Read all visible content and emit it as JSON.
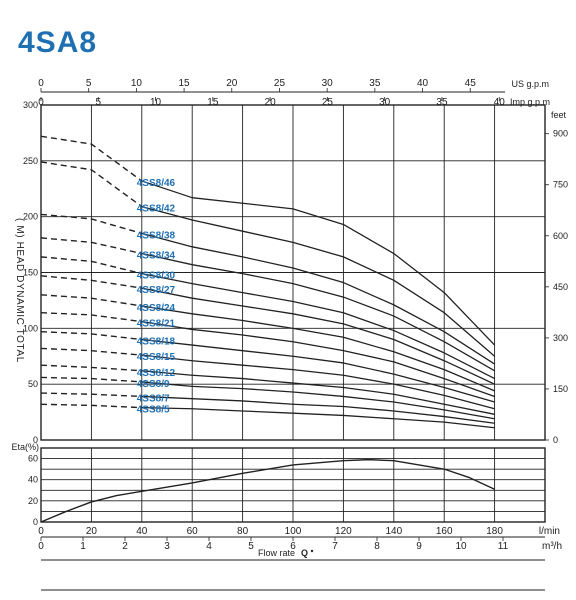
{
  "title": "4SA8",
  "head_chart": {
    "ylabel": "( M) HEAD DYNAMIC TOTAL",
    "left_ticks": [
      "0",
      "50",
      "100",
      "150",
      "200",
      "250",
      "300"
    ],
    "feet_label": "feet",
    "feet_ticks": [
      {
        "v": 0,
        "t": "0"
      },
      {
        "v": 150,
        "t": "150"
      },
      {
        "v": 300,
        "t": "300"
      },
      {
        "v": 450,
        "t": "450"
      },
      {
        "v": 600,
        "t": "600"
      },
      {
        "v": 750,
        "t": "750"
      },
      {
        "v": 900,
        "t": "900"
      }
    ],
    "usgpm_label": "US g.p.m",
    "usgpm_ticks": [
      "0",
      "5",
      "10",
      "15",
      "20",
      "25",
      "30",
      "35",
      "40",
      "45"
    ],
    "impgpm_label": "Imp g.p.m",
    "impgpm_ticks": [
      "0",
      "5",
      "10",
      "15",
      "20",
      "25",
      "30",
      "35",
      "40"
    ]
  },
  "eff_chart": {
    "ylabel": "Eta(%)",
    "ticks": [
      "0",
      "20",
      "40",
      "60"
    ]
  },
  "bottom_axis": {
    "lmin_ticks": [
      "0",
      "20",
      "40",
      "60",
      "80",
      "100",
      "120",
      "140",
      "160",
      "180"
    ],
    "lmin_label": "l/min",
    "m3h_ticks": [
      "0",
      "1",
      "2",
      "3",
      "4",
      "5",
      "6",
      "7",
      "8",
      "9",
      "10",
      "11"
    ],
    "m3h_label": "m³/h",
    "xlabel": "Flow rate",
    "xsym": "Q"
  },
  "chart_data": [
    {
      "type": "line",
      "x_unit": "l/min",
      "xlim": [
        0,
        200
      ],
      "ylim": [
        0,
        300
      ],
      "dashed_until_x": 40,
      "series": [
        {
          "name": "4SS8/46",
          "x": [
            0,
            20,
            40,
            60,
            80,
            100,
            120,
            140,
            160,
            180
          ],
          "y": [
            272,
            265,
            232,
            217,
            212,
            207,
            193,
            167,
            132,
            85
          ]
        },
        {
          "name": "4SS8/42",
          "x": [
            0,
            20,
            40,
            60,
            80,
            100,
            120,
            140,
            160,
            180
          ],
          "y": [
            249,
            242,
            209,
            197,
            187,
            177,
            164,
            143,
            114,
            75
          ]
        },
        {
          "name": "4SS8/38",
          "x": [
            0,
            20,
            40,
            60,
            80,
            100,
            120,
            140,
            160,
            180
          ],
          "y": [
            202,
            198,
            185,
            173,
            164,
            154,
            141,
            121,
            97,
            68
          ]
        },
        {
          "name": "4SS8/34",
          "x": [
            0,
            20,
            40,
            60,
            80,
            100,
            120,
            140,
            160,
            180
          ],
          "y": [
            181,
            177,
            167,
            157,
            149,
            140,
            128,
            111,
            88,
            62
          ]
        },
        {
          "name": "4SS8/30",
          "x": [
            0,
            20,
            40,
            60,
            80,
            100,
            120,
            140,
            160,
            180
          ],
          "y": [
            164,
            160,
            149,
            140,
            132,
            124,
            114,
            98,
            78,
            55
          ]
        },
        {
          "name": "4SS8/27",
          "x": [
            0,
            20,
            40,
            60,
            80,
            100,
            120,
            140,
            160,
            180
          ],
          "y": [
            147,
            143,
            136,
            127,
            120,
            113,
            104,
            90,
            71,
            50
          ]
        },
        {
          "name": "4SS8/24",
          "x": [
            0,
            20,
            40,
            60,
            80,
            100,
            120,
            140,
            160,
            180
          ],
          "y": [
            130,
            127,
            120,
            113,
            107,
            100,
            92,
            79,
            63,
            44
          ]
        },
        {
          "name": "4SS8/21",
          "x": [
            0,
            20,
            40,
            60,
            80,
            100,
            120,
            140,
            160,
            180
          ],
          "y": [
            114,
            112,
            106,
            99,
            94,
            88,
            80,
            70,
            55,
            39
          ]
        },
        {
          "name": "4SS8/18",
          "x": [
            0,
            20,
            40,
            60,
            80,
            100,
            120,
            140,
            160,
            180
          ],
          "y": [
            97,
            95,
            90,
            85,
            80,
            75,
            69,
            59,
            47,
            34
          ]
        },
        {
          "name": "4SS8/15",
          "x": [
            0,
            20,
            40,
            60,
            80,
            100,
            120,
            140,
            160,
            180
          ],
          "y": [
            82,
            80,
            76,
            71,
            67,
            63,
            58,
            50,
            40,
            28
          ]
        },
        {
          "name": "4SS8/12",
          "x": [
            0,
            20,
            40,
            60,
            80,
            100,
            120,
            140,
            160,
            180
          ],
          "y": [
            67,
            65,
            62,
            58,
            55,
            51,
            47,
            41,
            32,
            23
          ]
        },
        {
          "name": "4SS8/9",
          "x": [
            0,
            20,
            40,
            60,
            80,
            100,
            120,
            140,
            160,
            180
          ],
          "y": [
            56,
            55,
            52,
            48,
            46,
            43,
            39,
            34,
            27,
            19
          ]
        },
        {
          "name": "4SS8/7",
          "x": [
            0,
            20,
            40,
            60,
            80,
            100,
            120,
            140,
            160,
            180
          ],
          "y": [
            42,
            41,
            39,
            37,
            35,
            32,
            30,
            26,
            21,
            15
          ]
        },
        {
          "name": "4SS8/5",
          "x": [
            0,
            20,
            40,
            60,
            80,
            100,
            120,
            140,
            160,
            180
          ],
          "y": [
            32,
            31,
            29,
            28,
            26,
            24,
            22,
            19,
            16,
            11
          ]
        }
      ]
    },
    {
      "type": "line",
      "x_unit": "l/min",
      "xlim": [
        0,
        200
      ],
      "ylim": [
        0,
        70
      ],
      "series": [
        {
          "name": "",
          "x": [
            0,
            10,
            20,
            30,
            40,
            60,
            80,
            100,
            120,
            130,
            140,
            160,
            170,
            180
          ],
          "y": [
            0,
            10,
            19,
            25,
            29,
            37,
            46,
            54,
            58,
            59,
            58,
            50,
            42,
            31
          ]
        }
      ]
    }
  ]
}
